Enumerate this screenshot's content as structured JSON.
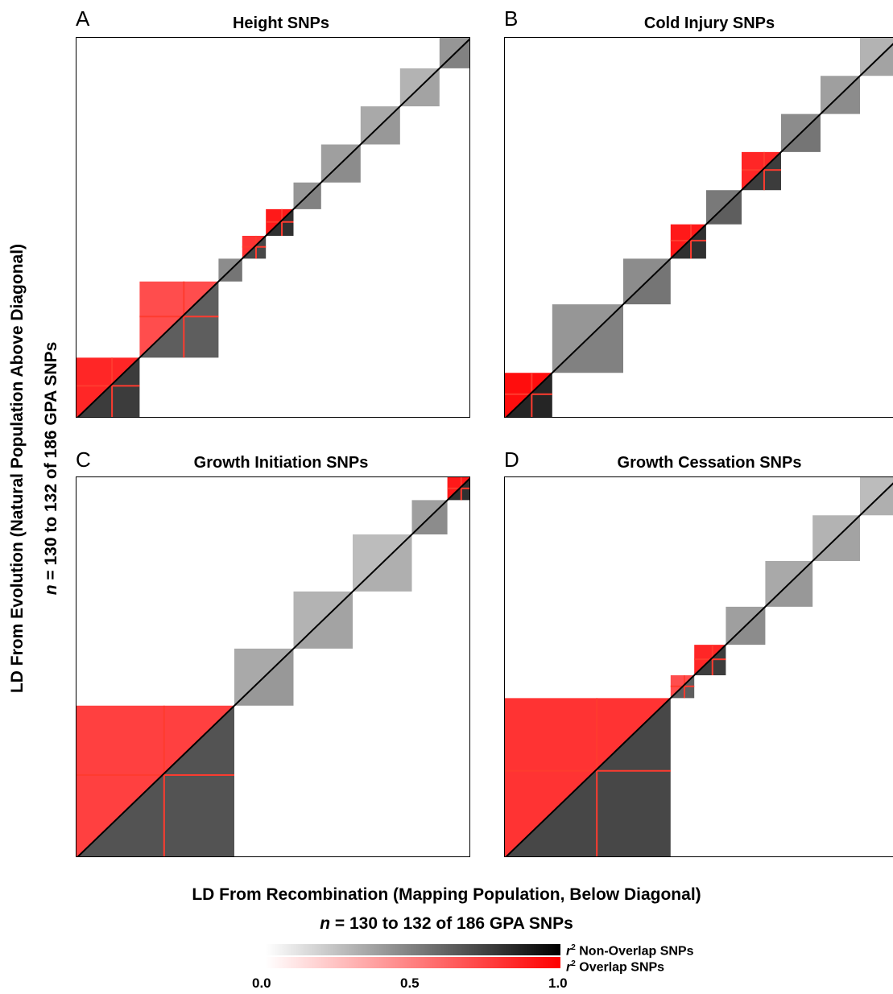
{
  "figure": {
    "y_axis_title_line1": "LD From Evolution (Natural Population Above Diagonal)",
    "y_axis_title_line2_n": "n",
    "y_axis_title_line2_rest": " = 130 to 132 of 186 GPA SNPs",
    "x_axis_title_line1": "LD From Recombination (Mapping Population, Below Diagonal)",
    "x_axis_title_line2_n": "n",
    "x_axis_title_line2_rest": " = 130 to 132 of 186 GPA SNPs"
  },
  "colorbar": {
    "non_overlap_label_r": "r",
    "non_overlap_label_sup": "2",
    "non_overlap_label_rest": " Non-Overlap SNPs",
    "overlap_label_r": "r",
    "overlap_label_sup": "2",
    "overlap_label_rest": " Overlap SNPs",
    "ticks": [
      "0.0",
      "0.5",
      "1.0"
    ],
    "range": [
      0.0,
      1.0
    ],
    "colors": {
      "non_overlap_low": "#ffffff",
      "non_overlap_high": "#000000",
      "overlap_low": "#ffffff",
      "overlap_high": "#ff0000"
    }
  },
  "chart_data": [
    {
      "type": "heatmap",
      "panel": "A",
      "title": "Height SNPs",
      "metric": "r2",
      "blocks": [
        {
          "from": 0.0,
          "to": 0.16,
          "r2": 0.85,
          "overlap": true
        },
        {
          "from": 0.16,
          "to": 0.36,
          "r2": 0.7,
          "overlap": true
        },
        {
          "from": 0.36,
          "to": 0.42,
          "r2": 0.6,
          "overlap": false
        },
        {
          "from": 0.42,
          "to": 0.48,
          "r2": 0.8,
          "overlap": true
        },
        {
          "from": 0.48,
          "to": 0.55,
          "r2": 0.9,
          "overlap": true
        },
        {
          "from": 0.55,
          "to": 0.62,
          "r2": 0.55,
          "overlap": false
        },
        {
          "from": 0.62,
          "to": 0.72,
          "r2": 0.5,
          "overlap": false
        },
        {
          "from": 0.72,
          "to": 0.82,
          "r2": 0.45,
          "overlap": false
        },
        {
          "from": 0.82,
          "to": 0.92,
          "r2": 0.4,
          "overlap": false
        },
        {
          "from": 0.92,
          "to": 1.0,
          "r2": 0.55,
          "overlap": false
        }
      ]
    },
    {
      "type": "heatmap",
      "panel": "B",
      "title": "Cold Injury SNPs",
      "metric": "r2",
      "blocks": [
        {
          "from": 0.0,
          "to": 0.12,
          "r2": 0.95,
          "overlap": true
        },
        {
          "from": 0.12,
          "to": 0.3,
          "r2": 0.55,
          "overlap": false
        },
        {
          "from": 0.3,
          "to": 0.42,
          "r2": 0.6,
          "overlap": false
        },
        {
          "from": 0.42,
          "to": 0.51,
          "r2": 0.9,
          "overlap": true
        },
        {
          "from": 0.51,
          "to": 0.6,
          "r2": 0.7,
          "overlap": false
        },
        {
          "from": 0.6,
          "to": 0.7,
          "r2": 0.85,
          "overlap": true
        },
        {
          "from": 0.7,
          "to": 0.8,
          "r2": 0.6,
          "overlap": false
        },
        {
          "from": 0.8,
          "to": 0.9,
          "r2": 0.5,
          "overlap": false
        },
        {
          "from": 0.9,
          "to": 1.0,
          "r2": 0.4,
          "overlap": false
        }
      ]
    },
    {
      "type": "heatmap",
      "panel": "C",
      "title": "Growth Initiation SNPs",
      "metric": "r2",
      "blocks": [
        {
          "from": 0.0,
          "to": 0.4,
          "r2": 0.75,
          "overlap": true
        },
        {
          "from": 0.4,
          "to": 0.55,
          "r2": 0.45,
          "overlap": false
        },
        {
          "from": 0.55,
          "to": 0.7,
          "r2": 0.4,
          "overlap": false
        },
        {
          "from": 0.7,
          "to": 0.85,
          "r2": 0.35,
          "overlap": false
        },
        {
          "from": 0.85,
          "to": 0.94,
          "r2": 0.5,
          "overlap": false
        },
        {
          "from": 0.94,
          "to": 1.0,
          "r2": 0.9,
          "overlap": true
        }
      ]
    },
    {
      "type": "heatmap",
      "panel": "D",
      "title": "Growth Cessation SNPs",
      "metric": "r2",
      "blocks": [
        {
          "from": 0.0,
          "to": 0.42,
          "r2": 0.8,
          "overlap": true
        },
        {
          "from": 0.42,
          "to": 0.48,
          "r2": 0.7,
          "overlap": true
        },
        {
          "from": 0.48,
          "to": 0.56,
          "r2": 0.85,
          "overlap": true
        },
        {
          "from": 0.56,
          "to": 0.66,
          "r2": 0.5,
          "overlap": false
        },
        {
          "from": 0.66,
          "to": 0.78,
          "r2": 0.45,
          "overlap": false
        },
        {
          "from": 0.78,
          "to": 0.9,
          "r2": 0.4,
          "overlap": false
        },
        {
          "from": 0.9,
          "to": 1.0,
          "r2": 0.35,
          "overlap": false
        }
      ]
    }
  ]
}
